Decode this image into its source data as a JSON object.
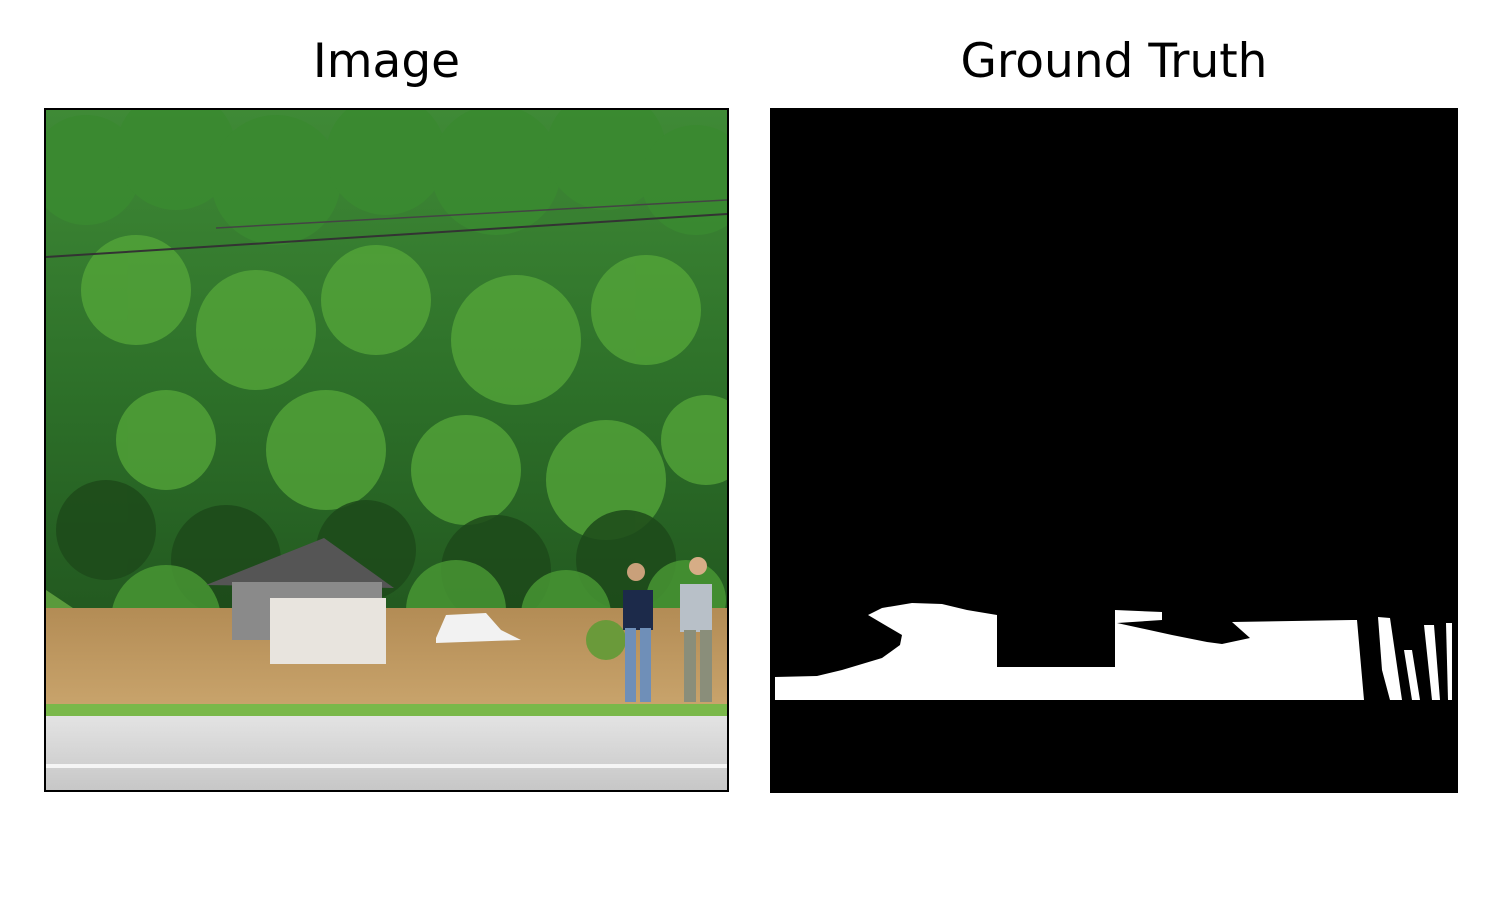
{
  "figure": {
    "panels": [
      {
        "title": "Image"
      },
      {
        "title": "Ground Truth"
      }
    ]
  },
  "colors": {
    "background": "#ffffff",
    "foliage_dark": "#1f4f1c",
    "foliage_mid": "#2e7a28",
    "foliage_light": "#56a83a",
    "flood_water": "#b8925a",
    "road": "#d6d6d6",
    "mask_background": "#000000",
    "mask_foreground": "#ffffff"
  }
}
